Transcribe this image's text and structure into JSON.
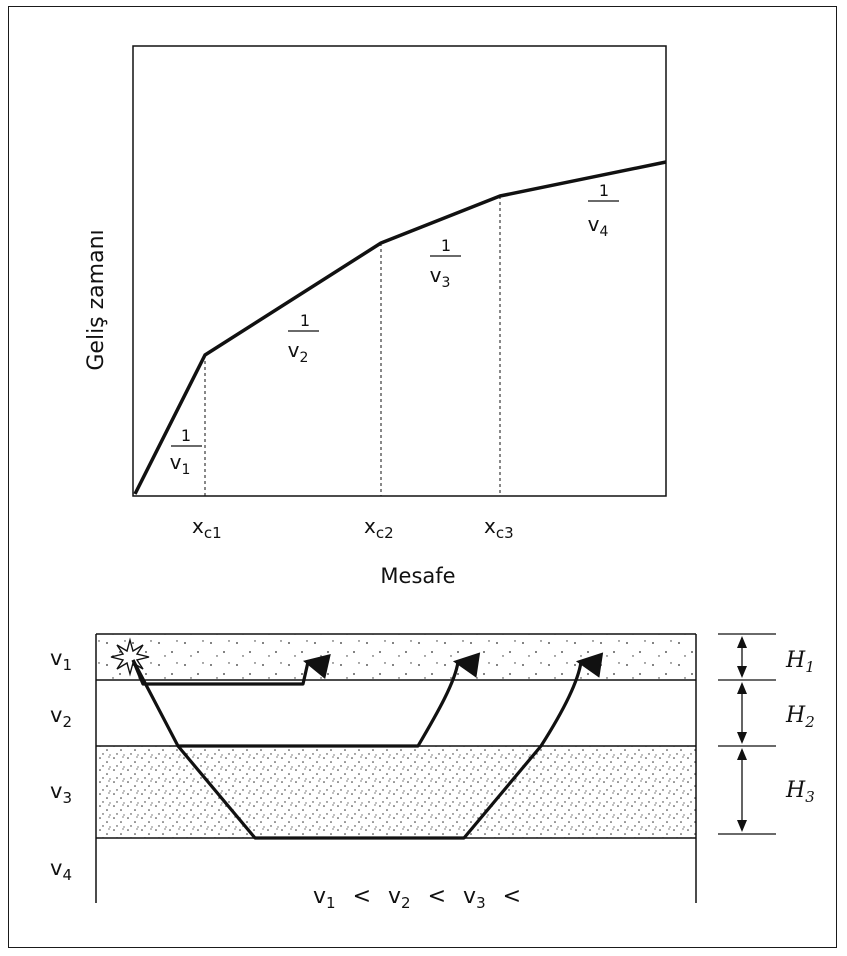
{
  "top_chart": {
    "ylabel": "Geliş zamanı",
    "xlabel": "Mesafe",
    "crossovers": [
      {
        "base": "x",
        "sub": "c1"
      },
      {
        "base": "x",
        "sub": "c2"
      },
      {
        "base": "x",
        "sub": "c3"
      }
    ],
    "slopes": [
      {
        "num": "1",
        "var": "v",
        "sub": "1"
      },
      {
        "num": "1",
        "var": "v",
        "sub": "2"
      },
      {
        "num": "1",
        "var": "v",
        "sub": "3"
      },
      {
        "num": "1",
        "var": "v",
        "sub": "4"
      }
    ]
  },
  "layers": {
    "velocities": [
      {
        "var": "v",
        "sub": "1"
      },
      {
        "var": "v",
        "sub": "2"
      },
      {
        "var": "v",
        "sub": "3"
      },
      {
        "var": "v",
        "sub": "4"
      }
    ],
    "thicknesses": [
      {
        "var": "H",
        "sub": "1"
      },
      {
        "var": "H",
        "sub": "2"
      },
      {
        "var": "H",
        "sub": "3"
      }
    ],
    "relation": [
      {
        "var": "v",
        "sub": "1"
      },
      {
        "op": "<"
      },
      {
        "var": "v",
        "sub": "2"
      },
      {
        "op": "<"
      },
      {
        "var": "v",
        "sub": "3"
      },
      {
        "op": "<"
      }
    ]
  },
  "colors": {
    "ink": "#111111",
    "dots": "#2a2a2a"
  }
}
